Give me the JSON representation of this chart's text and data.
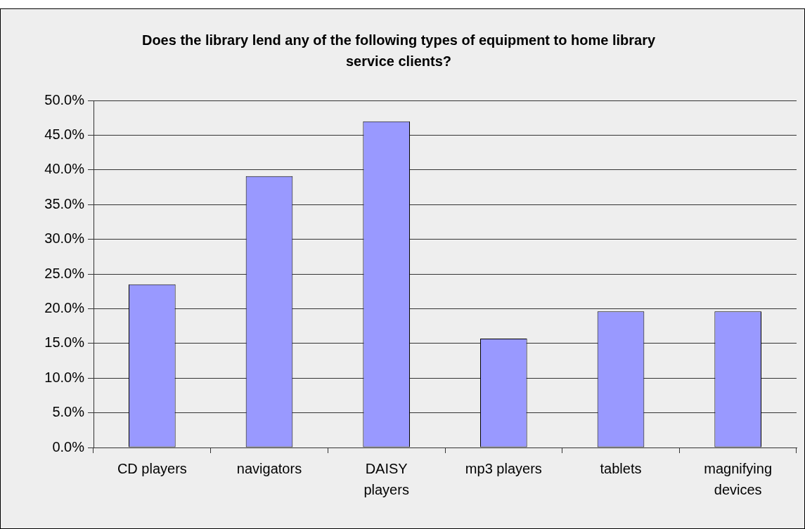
{
  "chart_data": {
    "type": "bar",
    "title": "Does the library lend any of the following types of equipment to home library service clients?",
    "categories": [
      "CD players",
      "navigators",
      "DAISY players",
      "mp3 players",
      "tablets",
      "magnifying devices"
    ],
    "values": [
      23.5,
      39.1,
      47.0,
      15.7,
      19.6,
      19.6
    ],
    "color": "#9999ff",
    "ylim": [
      0,
      50
    ],
    "yticks": [
      {
        "value": 0,
        "label": "0.0%"
      },
      {
        "value": 5,
        "label": "5.0%"
      },
      {
        "value": 10,
        "label": "10.0%"
      },
      {
        "value": 15,
        "label": "15.0%"
      },
      {
        "value": 20,
        "label": "20.0%"
      },
      {
        "value": 25,
        "label": "25.0%"
      },
      {
        "value": 30,
        "label": "30.0%"
      },
      {
        "value": 35,
        "label": "35.0%"
      },
      {
        "value": 40,
        "label": "40.0%"
      },
      {
        "value": 45,
        "label": "45.0%"
      },
      {
        "value": 50,
        "label": "50.0%"
      }
    ],
    "grid": "y"
  }
}
